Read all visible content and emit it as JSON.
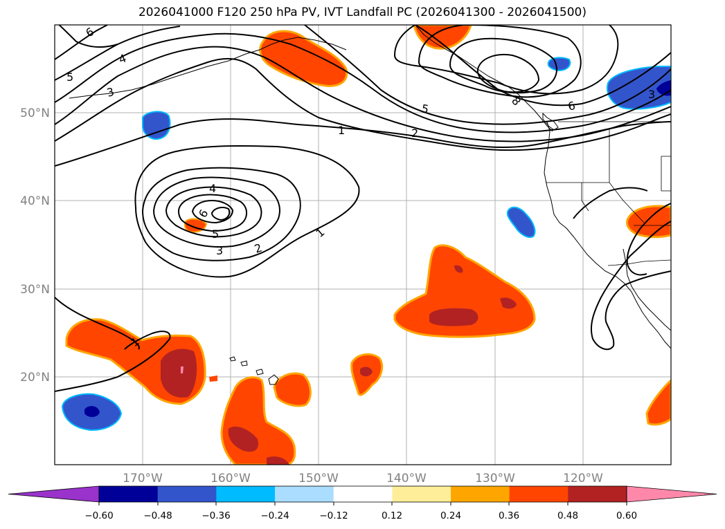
{
  "title": "2026041000 F120 250 hPa PV, IVT Landfall PC (2026041300 - 2026041500)",
  "lat_labels": [
    "50°N",
    "40°N",
    "30°N",
    "20°N"
  ],
  "lon_labels": [
    "170°W",
    "160°W",
    "150°W",
    "140°W",
    "130°W",
    "120°W"
  ],
  "colorbar": {
    "colors": [
      "#9933cc",
      "#000099",
      "#3355cc",
      "#00bbff",
      "#aaddff",
      "#ffffff",
      "#ffee99",
      "#ffa500",
      "#ff4500",
      "#b22222",
      "#ff88aa"
    ],
    "ticks": [
      "−0.60",
      "−0.48",
      "−0.36",
      "−0.24",
      "−0.12",
      "0.12",
      "0.24",
      "0.36",
      "0.48",
      "0.60"
    ]
  },
  "contour_labels": [
    "6",
    "5",
    "4",
    "3",
    "1",
    "2",
    "5",
    "6",
    "4",
    "5",
    "3",
    "2",
    "1",
    "6",
    "3",
    "1",
    "8"
  ],
  "legend_colors": {
    "positive_mid": "#ff4500",
    "positive_high": "#b22222",
    "positive_low": "#ffa500",
    "negative_mid": "#3355cc",
    "negative_high": "#000099",
    "negative_low": "#00bbff"
  }
}
